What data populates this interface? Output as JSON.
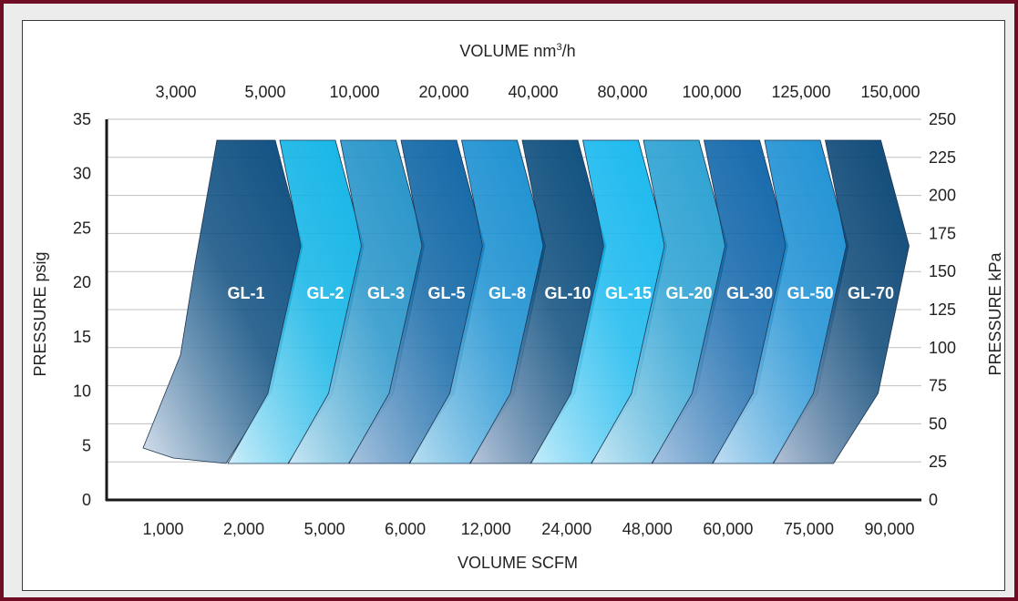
{
  "chart_data": {
    "type": "area",
    "top_axis_title": "VOLUME nm",
    "top_axis_title_sup": "3",
    "top_axis_title_suffix": "/h",
    "top_ticks": [
      "3,000",
      "5,000",
      "10,000",
      "20,000",
      "40,000",
      "80,000",
      "100,000",
      "125,000",
      "150,000"
    ],
    "bottom_axis_title": "VOLUME SCFM",
    "bottom_ticks": [
      "1,000",
      "2,000",
      "5,000",
      "6,000",
      "12,000",
      "24,000",
      "48,000",
      "60,000",
      "75,000",
      "90,000"
    ],
    "left_axis_title": "PRESSURE psig",
    "left_ticks": [
      0,
      5,
      10,
      15,
      20,
      25,
      30,
      35
    ],
    "left_range": [
      0,
      35
    ],
    "right_axis_title": "PRESSURE kPa",
    "right_ticks": [
      0,
      25,
      50,
      75,
      100,
      125,
      150,
      175,
      200,
      225,
      250
    ],
    "right_range": [
      0,
      250
    ],
    "grid": true,
    "series": [
      {
        "name": "GL-1",
        "pressure_range_psig": [
          4,
          34
        ]
      },
      {
        "name": "GL-2",
        "pressure_range_psig": [
          4,
          34
        ]
      },
      {
        "name": "GL-3",
        "pressure_range_psig": [
          4,
          34
        ]
      },
      {
        "name": "GL-5",
        "pressure_range_psig": [
          4,
          34
        ]
      },
      {
        "name": "GL-8",
        "pressure_range_psig": [
          4,
          34
        ]
      },
      {
        "name": "GL-10",
        "pressure_range_psig": [
          4,
          34
        ]
      },
      {
        "name": "GL-15",
        "pressure_range_psig": [
          4,
          34
        ]
      },
      {
        "name": "GL-20",
        "pressure_range_psig": [
          4,
          34
        ]
      },
      {
        "name": "GL-30",
        "pressure_range_psig": [
          4,
          34
        ]
      },
      {
        "name": "GL-50",
        "pressure_range_psig": [
          4,
          34
        ]
      },
      {
        "name": "GL-70",
        "pressure_range_psig": [
          4,
          34
        ]
      }
    ],
    "band_colors": [
      [
        "#d8e2ee",
        "#0d4e80"
      ],
      [
        "#cdeefa",
        "#12b4e6"
      ],
      [
        "#c9e8f4",
        "#2493c8"
      ],
      [
        "#a9c4e0",
        "#0f65a5"
      ],
      [
        "#b9dff2",
        "#1a8fd0"
      ],
      [
        "#b8c6dc",
        "#0b4c7c"
      ],
      [
        "#c5ecfa",
        "#18b8ee"
      ],
      [
        "#c8e8f5",
        "#2aa0d2"
      ],
      [
        "#a8c4e2",
        "#1166aa"
      ],
      [
        "#c0def3",
        "#1d90d3"
      ],
      [
        "#b4c2d8",
        "#0b4776"
      ]
    ]
  }
}
